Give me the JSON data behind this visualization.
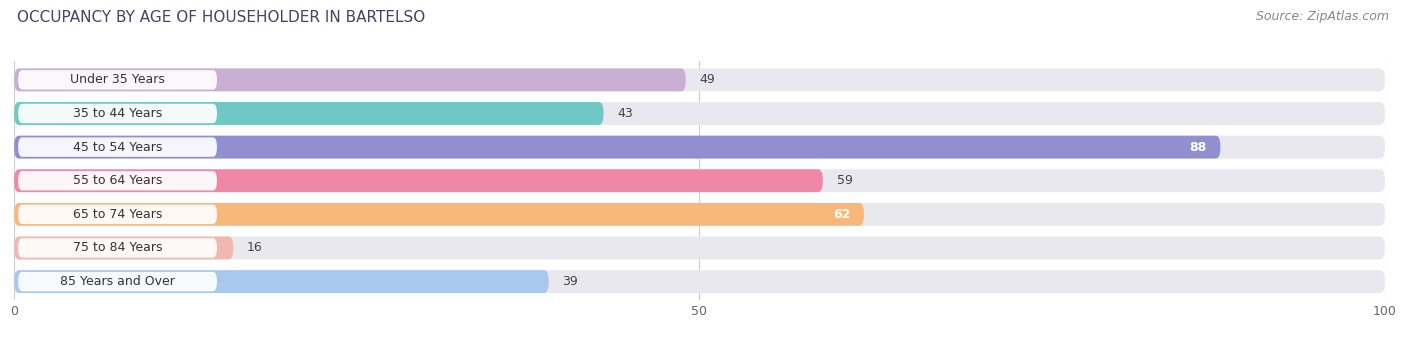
{
  "title": "OCCUPANCY BY AGE OF HOUSEHOLDER IN BARTELSO",
  "source": "Source: ZipAtlas.com",
  "categories": [
    "Under 35 Years",
    "35 to 44 Years",
    "45 to 54 Years",
    "55 to 64 Years",
    "65 to 74 Years",
    "75 to 84 Years",
    "85 Years and Over"
  ],
  "values": [
    49,
    43,
    88,
    59,
    62,
    16,
    39
  ],
  "colors": [
    "#c9afd4",
    "#6ec8c4",
    "#9090d0",
    "#f087a8",
    "#f9b87a",
    "#f2b8b0",
    "#a8c8f0"
  ],
  "bar_bg_color": "#e8e8ee",
  "xlim": [
    0,
    100
  ],
  "label_inside_threshold": 75,
  "title_fontsize": 11,
  "source_fontsize": 9,
  "tick_fontsize": 9,
  "bar_label_fontsize": 9,
  "category_fontsize": 9,
  "bar_height": 0.68,
  "figsize": [
    14.06,
    3.41
  ],
  "dpi": 100
}
